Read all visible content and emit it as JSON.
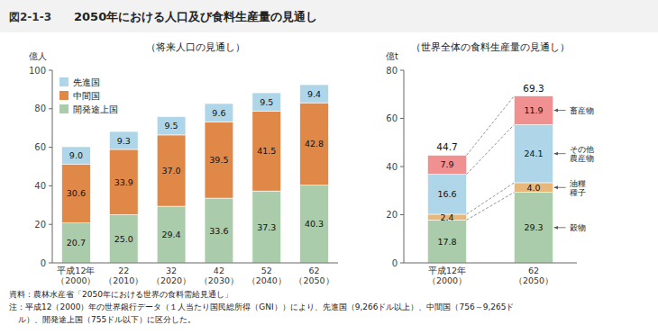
{
  "figure_label": "図2-1-3",
  "title": "2050年における人口及び食料生産量の見通し",
  "notes": [
    "資料：農林水産省「2050年における世界の食料需給見通し」",
    "注：平成12（2000）年の世界銀行データ（１人当たり国民総所得（GNI））により、先進国（9,266ドル以上）、中間国（756～9,265ド",
    "ル）、開発途上国（755ドル以下）に区分した。"
  ],
  "chart_data": [
    {
      "type": "bar",
      "stacked": true,
      "data_labels": true,
      "grid": false,
      "legend": "upper left",
      "subtitle": "（将来人口の見通し）",
      "y_label": "億人",
      "categories": [
        "平成12年\n（2000）",
        "22\n（2010）",
        "32\n（2020）",
        "42\n（2030）",
        "52\n（2040）",
        "62\n（2050）"
      ],
      "ylim": [
        0,
        100
      ],
      "yticks": [
        0,
        20,
        40,
        60,
        80,
        100
      ],
      "series": [
        {
          "name": "開発途上国",
          "color": "#aaccaa",
          "values": [
            20.7,
            25.0,
            29.4,
            33.6,
            37.3,
            40.3
          ],
          "value_labels": [
            "20.7",
            "25.0",
            "29.4",
            "33.6",
            "37.3",
            "40.3"
          ]
        },
        {
          "name": "中間国",
          "color": "#e08848",
          "values": [
            30.6,
            33.9,
            37.0,
            39.5,
            41.5,
            42.8
          ],
          "value_labels": [
            "30.6",
            "33.9",
            "37.0",
            "39.5",
            "41.5",
            "42.8"
          ]
        },
        {
          "name": "先進国",
          "color": "#aed6e8",
          "values": [
            9.0,
            9.3,
            9.5,
            9.6,
            9.5,
            9.4
          ],
          "value_labels": [
            "9.0",
            "9.3",
            "9.5",
            "9.6",
            "9.5",
            "9.4"
          ]
        }
      ]
    },
    {
      "type": "bar",
      "stacked": true,
      "data_labels": true,
      "grid": false,
      "legend": "right",
      "subtitle": "（世界全体の食料生産量の見通し）",
      "y_label": "億t",
      "categories": [
        "平成12年\n（2000）",
        "62\n（2050）"
      ],
      "ylim": [
        0,
        80
      ],
      "yticks": [
        0,
        20,
        40,
        60,
        80
      ],
      "series": [
        {
          "name": "穀物",
          "color": "#aaccaa",
          "values": [
            17.8,
            29.3
          ],
          "value_labels": [
            "17.8",
            "29.3"
          ]
        },
        {
          "name": "油糧\n種子",
          "color": "#e8b87a",
          "values": [
            2.4,
            4.0
          ],
          "value_labels": [
            "2.4",
            "4.0"
          ]
        },
        {
          "name": "その他\n農産物",
          "color": "#aed6e8",
          "values": [
            16.6,
            24.1
          ],
          "value_labels": [
            "16.6",
            "24.1"
          ]
        },
        {
          "name": "畜産物",
          "color": "#f09090",
          "values": [
            7.9,
            11.9
          ],
          "value_labels": [
            "7.9",
            "11.9"
          ]
        }
      ],
      "totals": [
        44.7,
        69.3
      ]
    }
  ]
}
